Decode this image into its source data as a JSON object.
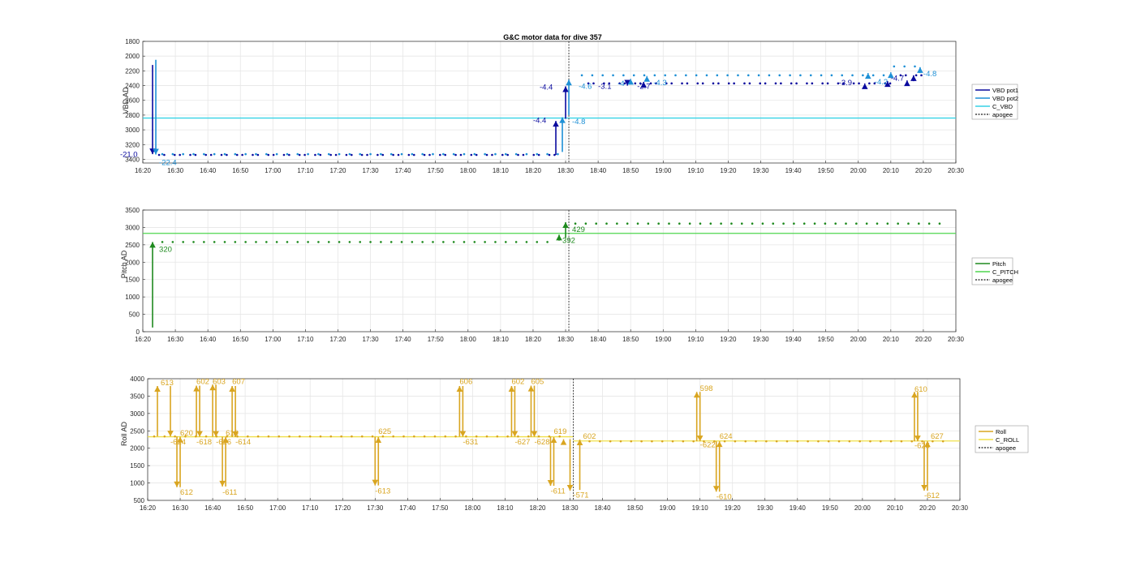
{
  "colors": {
    "vbd_pot1": "#0a0a9e",
    "vbd_pot2": "#1e90d6",
    "c_vbd": "#36d2e6",
    "pitch": "#1e8a1e",
    "c_pitch": "#4fd64f",
    "roll": "#d9a520",
    "c_roll": "#f0e04a",
    "apogee": "#404040",
    "grid": "#e6e6e6",
    "axis": "#262626"
  },
  "chart_data": [
    {
      "type": "line",
      "title": "G&C motor data for dive 357",
      "ylabel": "VBD AD",
      "y_reversed": true,
      "ylim": [
        1800,
        3450
      ],
      "yticks": [
        "1800",
        "2000",
        "2200",
        "2400",
        "2600",
        "2800",
        "3000",
        "3200",
        "3400"
      ],
      "xlim": [
        "16:20",
        "20:30"
      ],
      "xticks": [
        "16:20",
        "16:30",
        "16:40",
        "16:50",
        "17:00",
        "17:10",
        "17:20",
        "17:30",
        "17:40",
        "17:50",
        "18:00",
        "18:10",
        "18:20",
        "18:30",
        "18:40",
        "18:50",
        "19:00",
        "19:10",
        "19:20",
        "19:30",
        "19:40",
        "19:50",
        "20:00",
        "20:10",
        "20:20",
        "20:30"
      ],
      "grid": true,
      "legend": {
        "placement": "outside-right",
        "entries": [
          "VBD pot1",
          "VBD pot2",
          "C_VBD",
          "apogee"
        ]
      },
      "apogee": "18:31",
      "c_vbd": 2840,
      "series": [
        {
          "name": "VBD pot1",
          "pre_level": 3340,
          "pre_range": [
            "16:25",
            "18:28"
          ],
          "post_level": 2370,
          "post_range": [
            "18:37",
            "20:21"
          ],
          "post_tail": 2260
        },
        {
          "name": "VBD pot2",
          "pre_level": 3330,
          "pre_range": [
            "16:26",
            "18:29"
          ],
          "post_level": 2260,
          "post_range": [
            "18:35",
            "20:20"
          ],
          "post_tail": 2140
        }
      ],
      "moves": [
        {
          "t": "16:23",
          "from": 2120,
          "to": 3330,
          "series": "VBD pot1",
          "label": "-21.0",
          "lt": "16:13",
          "ly": 3335
        },
        {
          "t": "16:24",
          "from": 2050,
          "to": 3335,
          "series": "VBD pot2",
          "label": "-22.4",
          "lt": "16:25",
          "ly": 3445
        },
        {
          "t": "18:27",
          "from": 3340,
          "to": 2880,
          "series": "VBD pot1",
          "label": "-4.4",
          "lt": "18:20",
          "ly": 2875
        },
        {
          "t": "18:29",
          "from": 3300,
          "to": 2830,
          "series": "VBD pot2",
          "label": "-4.8",
          "lt": "18:32",
          "ly": 2890
        },
        {
          "t": "18:30",
          "from": 2850,
          "to": 2410,
          "series": "VBD pot1",
          "label": "-4.4",
          "lt": "18:22",
          "ly": 2420
        },
        {
          "t": "18:31",
          "from": 2800,
          "to": 2320,
          "series": "VBD pot2",
          "label": "-4.6",
          "lt": "18:34",
          "ly": 2410
        },
        {
          "t": "18:49",
          "from": 2380,
          "to": 2400,
          "series": "VBD pot1",
          "label": "-3.1",
          "lt": "18:40",
          "ly": 2410
        },
        {
          "t": "18:50",
          "from": 2320,
          "to": 2310,
          "series": "VBD pot2",
          "label": "-4",
          "lt": "18:46",
          "ly": 2370
        },
        {
          "t": "18:54",
          "from": 2370,
          "to": 2350,
          "series": "VBD pot1",
          "label": "-2.7",
          "lt": "18:52",
          "ly": 2410
        },
        {
          "t": "18:55",
          "from": 2280,
          "to": 2270,
          "series": "VBD pot2",
          "label": "-4.3",
          "lt": "18:57",
          "ly": 2360
        },
        {
          "t": "20:02",
          "from": 2380,
          "to": 2370,
          "series": "VBD pot1",
          "label": "-3.9",
          "lt": "19:54",
          "ly": 2360
        },
        {
          "t": "20:03",
          "from": 2240,
          "to": 2230,
          "series": "VBD pot2",
          "label": "-4.2",
          "lt": "20:05",
          "ly": 2350
        },
        {
          "t": "20:09",
          "from": 2360,
          "to": 2340,
          "series": "VBD pot1",
          "label": "-4.7",
          "lt": "20:10",
          "ly": 2300
        },
        {
          "t": "20:10",
          "from": 2230,
          "to": 2220,
          "series": "VBD pot2",
          "label": "",
          "lt": "20:10",
          "ly": 2300
        },
        {
          "t": "20:15",
          "from": 2350,
          "to": 2330,
          "series": "VBD pot1",
          "label": "",
          "lt": "20:15",
          "ly": 2300
        },
        {
          "t": "20:17",
          "from": 2340,
          "to": 2260,
          "series": "VBD pot1",
          "label": "",
          "lt": "20:17",
          "ly": 2300
        },
        {
          "t": "20:19",
          "from": 2230,
          "to": 2150,
          "series": "VBD pot2",
          "label": "-4.8",
          "lt": "20:20",
          "ly": 2240
        }
      ]
    },
    {
      "type": "line",
      "title": "",
      "ylabel": "Pitch AD",
      "ylim": [
        0,
        3500
      ],
      "yticks": [
        "0",
        "500",
        "1000",
        "1500",
        "2000",
        "2500",
        "3000",
        "3500"
      ],
      "xlim": [
        "16:20",
        "20:30"
      ],
      "xticks": [
        "16:20",
        "16:30",
        "16:40",
        "16:50",
        "17:00",
        "17:10",
        "17:20",
        "17:30",
        "17:40",
        "17:50",
        "18:00",
        "18:10",
        "18:20",
        "18:30",
        "18:40",
        "18:50",
        "19:00",
        "19:10",
        "19:20",
        "19:30",
        "19:40",
        "19:50",
        "20:00",
        "20:10",
        "20:20",
        "20:30"
      ],
      "grid": true,
      "legend": {
        "placement": "outside-right",
        "entries": [
          "Pitch",
          "C_PITCH",
          "apogee"
        ]
      },
      "apogee": "18:31",
      "c_pitch": 2830,
      "series": [
        {
          "name": "Pitch",
          "pre_level": 2580,
          "pre_range": [
            "16:26",
            "18:26"
          ],
          "post_level": 3110,
          "post_range": [
            "18:33",
            "20:28"
          ]
        }
      ],
      "moves": [
        {
          "t": "16:23",
          "from": 120,
          "to": 2580,
          "label": "320",
          "lt": "16:25",
          "ly": 2370
        },
        {
          "t": "18:28",
          "from": 2620,
          "to": 2790,
          "label": "392",
          "lt": "18:29",
          "ly": 2620
        },
        {
          "t": "18:30",
          "from": 2700,
          "to": 3150,
          "label": "429",
          "lt": "18:32",
          "ly": 2940
        }
      ]
    },
    {
      "type": "line",
      "title": "",
      "ylabel": "Roll AD",
      "ylim": [
        500,
        4000
      ],
      "yticks": [
        "500",
        "1000",
        "1500",
        "2000",
        "2500",
        "3000",
        "3500",
        "4000"
      ],
      "xlim": [
        "16:20",
        "20:30"
      ],
      "xticks": [
        "16:20",
        "16:30",
        "16:40",
        "16:50",
        "17:00",
        "17:10",
        "17:20",
        "17:30",
        "17:40",
        "17:50",
        "18:00",
        "18:10",
        "18:20",
        "18:30",
        "18:40",
        "18:50",
        "19:00",
        "19:10",
        "19:20",
        "19:30",
        "19:40",
        "19:50",
        "20:00",
        "20:10",
        "20:20",
        "20:30"
      ],
      "grid": true,
      "legend": {
        "placement": "outside-right",
        "entries": [
          "Roll",
          "C_ROLL",
          "apogee"
        ]
      },
      "apogee": "18:31",
      "c_roll": 2330,
      "c_roll_after": 2210,
      "series": [
        {
          "name": "Roll",
          "pre_level": 2340,
          "pre_range": [
            "16:22",
            "18:30"
          ],
          "post_level": 2200,
          "post_range": [
            "18:36",
            "20:28"
          ]
        }
      ],
      "moves": [
        {
          "t": "16:23",
          "from": 2340,
          "to": 3790,
          "label": "613",
          "lt": "16:24",
          "ly": 3880
        },
        {
          "t": "16:27",
          "from": 3790,
          "to": 2340,
          "label": "620",
          "lt": "16:30",
          "ly": 2440
        },
        {
          "t": "16:29",
          "from": 2340,
          "to": 880,
          "label": "612",
          "lt": "16:30",
          "ly": 730
        },
        {
          "t": "16:30",
          "from": 880,
          "to": 2330,
          "label": "-624",
          "lt": "16:27",
          "ly": 2180
        },
        {
          "t": "16:35",
          "from": 2330,
          "to": 3800,
          "label": "602",
          "lt": "16:35",
          "ly": 3920
        },
        {
          "t": "16:36",
          "from": 3800,
          "to": 2330,
          "label": "-618",
          "lt": "16:35",
          "ly": 2180
        },
        {
          "t": "16:40",
          "from": 2330,
          "to": 3830,
          "label": "603",
          "lt": "16:40",
          "ly": 3920
        },
        {
          "t": "16:41",
          "from": 3830,
          "to": 2330,
          "label": "-626",
          "lt": "16:41",
          "ly": 2180
        },
        {
          "t": "16:43",
          "from": 2330,
          "to": 900,
          "label": "-611",
          "lt": "16:43",
          "ly": 730
        },
        {
          "t": "16:44",
          "from": 900,
          "to": 2320,
          "label": "619",
          "lt": "16:44",
          "ly": 2440
        },
        {
          "t": "16:46",
          "from": 2320,
          "to": 3790,
          "label": "607",
          "lt": "16:46",
          "ly": 3920
        },
        {
          "t": "16:47",
          "from": 3790,
          "to": 2320,
          "label": "-614",
          "lt": "16:47",
          "ly": 2180
        },
        {
          "t": "17:30",
          "from": 2330,
          "to": 930,
          "label": "-613",
          "lt": "17:30",
          "ly": 770
        },
        {
          "t": "17:31",
          "from": 930,
          "to": 2320,
          "label": "625",
          "lt": "17:31",
          "ly": 2480
        },
        {
          "t": "17:56",
          "from": 2330,
          "to": 3790,
          "label": "606",
          "lt": "17:56",
          "ly": 3920
        },
        {
          "t": "17:57",
          "from": 3790,
          "to": 2330,
          "label": "-631",
          "lt": "17:57",
          "ly": 2180
        },
        {
          "t": "18:12",
          "from": 2330,
          "to": 3790,
          "label": "602",
          "lt": "18:12",
          "ly": 3920
        },
        {
          "t": "18:13",
          "from": 3790,
          "to": 2330,
          "label": "-627",
          "lt": "18:13",
          "ly": 2180
        },
        {
          "t": "18:18",
          "from": 2330,
          "to": 3800,
          "label": "605",
          "lt": "18:18",
          "ly": 3920
        },
        {
          "t": "18:19",
          "from": 3800,
          "to": 2330,
          "label": "-628",
          "lt": "18:19",
          "ly": 2180
        },
        {
          "t": "18:24",
          "from": 2330,
          "to": 920,
          "label": "-611",
          "lt": "18:24",
          "ly": 770
        },
        {
          "t": "18:25",
          "from": 920,
          "to": 2320,
          "label": "619",
          "lt": "18:25",
          "ly": 2480
        },
        {
          "t": "18:28",
          "from": 2240,
          "to": 2260,
          "label": "",
          "lt": "18:28",
          "ly": 2300
        },
        {
          "t": "18:30",
          "from": 2260,
          "to": 780,
          "label": "-571",
          "lt": "18:31",
          "ly": 650
        },
        {
          "t": "18:33",
          "from": 800,
          "to": 2250,
          "label": "602",
          "lt": "18:34",
          "ly": 2340
        },
        {
          "t": "19:09",
          "from": 2200,
          "to": 3620,
          "label": "598",
          "lt": "19:10",
          "ly": 3720
        },
        {
          "t": "19:10",
          "from": 3620,
          "to": 2200,
          "label": "-622",
          "lt": "19:10",
          "ly": 2100
        },
        {
          "t": "19:15",
          "from": 2200,
          "to": 750,
          "label": "-610",
          "lt": "19:15",
          "ly": 610
        },
        {
          "t": "19:16",
          "from": 750,
          "to": 2200,
          "label": "624",
          "lt": "19:16",
          "ly": 2340
        },
        {
          "t": "20:16",
          "from": 2200,
          "to": 3620,
          "label": "610",
          "lt": "20:16",
          "ly": 3700
        },
        {
          "t": "20:17",
          "from": 3620,
          "to": 2200,
          "label": "-625",
          "lt": "20:16",
          "ly": 2080
        },
        {
          "t": "20:19",
          "from": 2200,
          "to": 780,
          "label": "-612",
          "lt": "20:19",
          "ly": 640
        },
        {
          "t": "20:20",
          "from": 780,
          "to": 2200,
          "label": "627",
          "lt": "20:21",
          "ly": 2340
        }
      ]
    }
  ]
}
